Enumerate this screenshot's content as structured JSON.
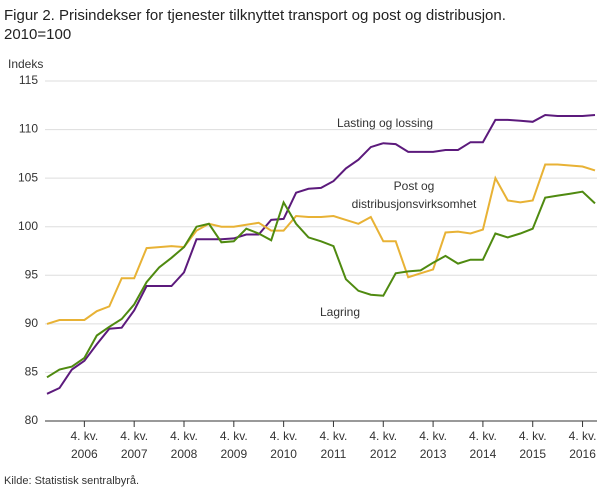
{
  "chart_data": {
    "type": "line",
    "title_lines": [
      "Figur 2. Prisindekser for tjenester tilknyttet transport og post og distribusjon.",
      "2010=100"
    ],
    "y_label": "Indeks",
    "source": "Kilde: Statistisk sentralbyrå.",
    "categories": [
      null,
      null,
      null,
      "4. kv. 2006",
      null,
      null,
      null,
      "4. kv. 2007",
      null,
      null,
      null,
      "4. kv. 2008",
      null,
      null,
      null,
      "4. kv. 2009",
      null,
      null,
      null,
      "4. kv. 2010",
      null,
      null,
      null,
      "4. kv. 2011",
      null,
      null,
      null,
      "4. kv. 2012",
      null,
      null,
      null,
      "4. kv. 2013",
      null,
      null,
      null,
      "4. kv. 2014",
      null,
      null,
      null,
      "4. kv. 2015",
      null,
      null,
      null,
      "4. kv. 2016",
      null
    ],
    "series": [
      {
        "name": "Lasting og lossing",
        "color": "#5c1a7c",
        "values": [
          82.8,
          83.4,
          85.3,
          86.2,
          87.9,
          89.5,
          89.6,
          91.4,
          93.9,
          93.9,
          93.9,
          95.3,
          98.7,
          98.7,
          98.7,
          98.8,
          99.2,
          99.2,
          100.7,
          100.8,
          103.5,
          103.9,
          104.0,
          104.7,
          106.0,
          106.9,
          108.2,
          108.6,
          108.5,
          107.7,
          107.7,
          107.7,
          107.9,
          107.9,
          108.7,
          108.7,
          111.0,
          111.0,
          110.9,
          110.8,
          111.5,
          111.4,
          111.4,
          111.4,
          111.5
        ]
      },
      {
        "name": "Post og distribusjonsvirksomhet",
        "color": "#e8b235",
        "values": [
          90.0,
          90.4,
          90.4,
          90.4,
          91.3,
          91.8,
          94.7,
          94.7,
          97.8,
          97.9,
          98.0,
          97.9,
          99.6,
          100.3,
          100.0,
          100.0,
          100.2,
          100.4,
          99.6,
          99.6,
          101.1,
          101.0,
          101.0,
          101.1,
          100.7,
          100.3,
          101.0,
          98.5,
          98.5,
          94.8,
          95.2,
          95.6,
          99.4,
          99.5,
          99.3,
          99.7,
          105.0,
          102.7,
          102.5,
          102.7,
          106.4,
          106.4,
          106.3,
          106.2,
          105.8
        ]
      },
      {
        "name": "Lagring",
        "color": "#4f8a10",
        "values": [
          84.5,
          85.3,
          85.6,
          86.5,
          88.8,
          89.7,
          90.5,
          92.0,
          94.3,
          95.8,
          96.8,
          97.9,
          100.0,
          100.3,
          98.4,
          98.5,
          99.8,
          99.3,
          98.6,
          102.5,
          100.3,
          98.9,
          98.5,
          98.0,
          94.6,
          93.4,
          93.0,
          92.9,
          95.2,
          95.4,
          95.5,
          96.3,
          97.0,
          96.2,
          96.6,
          96.6,
          99.3,
          98.9,
          99.3,
          99.8,
          103.0,
          103.2,
          103.4,
          103.6,
          102.4
        ]
      }
    ],
    "ylim": [
      80,
      115
    ],
    "yticks": [
      80,
      85,
      90,
      95,
      100,
      105,
      110,
      115
    ],
    "grid": true
  }
}
